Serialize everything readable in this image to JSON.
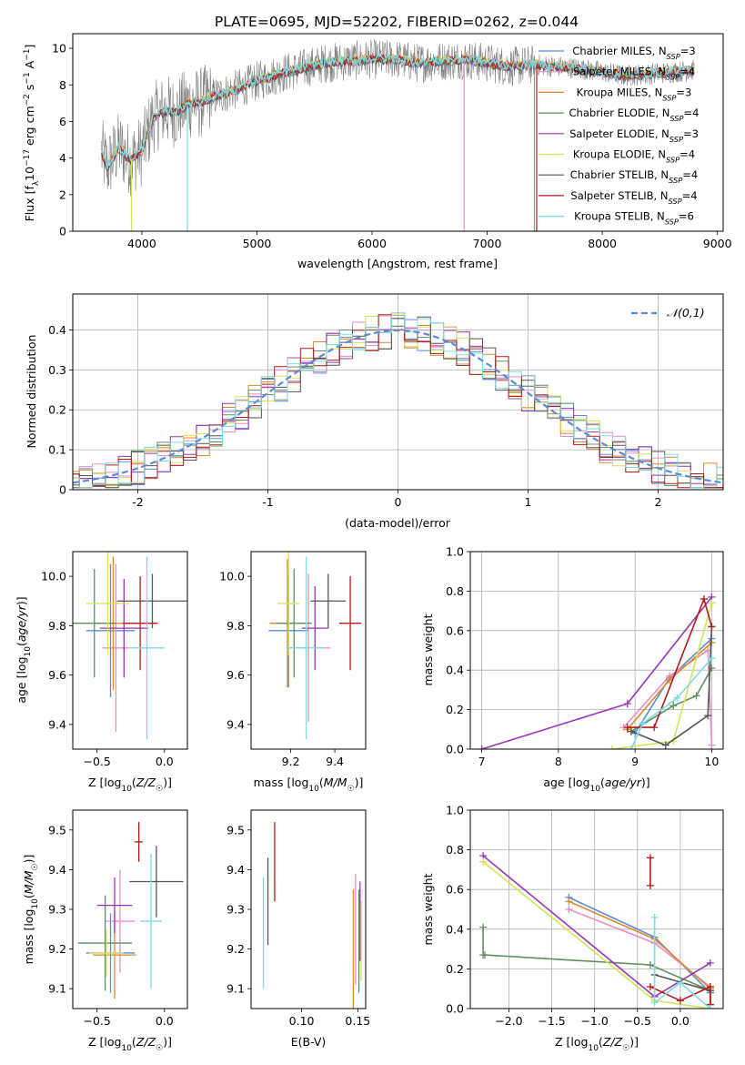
{
  "figure": {
    "title": "PLATE=0695, MJD=52202, FIBERID=0262, z=0.044"
  },
  "series_colors": {
    "Chabrier MILES": "#5b8bd6",
    "Salpeter MILES": "#e78fc5",
    "Kroupa MILES": "#d98a2b",
    "Chabrier ELODIE": "#5f8f5f",
    "Salpeter ELODIE": "#9b35b5",
    "Kroupa ELODIE": "#d4e35a",
    "Chabrier STELIB": "#555555",
    "Salpeter STELIB": "#b41a1a",
    "Kroupa STELIB": "#7edbe0",
    "data": "#808080",
    "gaussian": "#5b8bd6"
  },
  "chart_data": [
    {
      "id": "spectrum",
      "type": "line",
      "xlabel": "wavelength [Angstrom, rest frame]",
      "ylabel": "Flux [f_λ10^{-17} erg cm^{-2} s^{-1} A^{-1}]",
      "xlim": [
        3400,
        9050
      ],
      "ylim": [
        0,
        10.8
      ],
      "xticks": [
        4000,
        5000,
        6000,
        7000,
        8000,
        9000
      ],
      "yticks": [
        0,
        2,
        4,
        6,
        8,
        10
      ],
      "legend_position": "top-right",
      "legend": [
        {
          "name": "Chabrier MILES",
          "label": "Chabrier MILES, N",
          "sub": "SSP",
          "tail": "=3"
        },
        {
          "name": "Salpeter MILES",
          "label": "Salpeter MILES, N",
          "sub": "SSP",
          "tail": "=4"
        },
        {
          "name": "Kroupa MILES",
          "label": "Kroupa MILES, N",
          "sub": "SSP",
          "tail": "=3"
        },
        {
          "name": "Chabrier ELODIE",
          "label": "Chabrier ELODIE, N",
          "sub": "SSP",
          "tail": "=4"
        },
        {
          "name": "Salpeter ELODIE",
          "label": "Salpeter ELODIE, N",
          "sub": "SSP",
          "tail": "=3"
        },
        {
          "name": "Kroupa ELODIE",
          "label": "Kroupa ELODIE, N",
          "sub": "SSP",
          "tail": "=4"
        },
        {
          "name": "Chabrier STELIB",
          "label": "Chabrier STELIB, N",
          "sub": "SSP",
          "tail": "=4"
        },
        {
          "name": "Salpeter STELIB",
          "label": "Salpeter STELIB, N",
          "sub": "SSP",
          "tail": "=4"
        },
        {
          "name": "Kroupa STELIB",
          "label": "Kroupa STELIB, N",
          "sub": "SSP",
          "tail": "=6"
        }
      ],
      "continuum": {
        "x": [
          3650,
          3700,
          3800,
          3900,
          4000,
          4100,
          4200,
          4300,
          4400,
          4500,
          4600,
          4800,
          5000,
          5200,
          5400,
          5600,
          5800,
          6000,
          6200,
          6400,
          6600,
          6800,
          7000,
          7200,
          7400,
          7600,
          7800,
          8000,
          8200,
          8400,
          8600,
          8800
        ],
        "y": [
          4.3,
          3.5,
          4.6,
          3.9,
          4.4,
          6.2,
          6.6,
          6.5,
          7.0,
          7.0,
          7.3,
          7.7,
          8.2,
          8.6,
          8.9,
          9.2,
          9.3,
          9.4,
          9.4,
          9.2,
          9.3,
          9.4,
          9.2,
          9.0,
          9.1,
          9.0,
          8.9,
          8.7,
          8.5,
          8.6,
          8.7,
          8.8
        ]
      },
      "dips": [
        {
          "model": "Kroupa ELODIE",
          "x": 3910,
          "to": 0
        },
        {
          "model": "Kroupa STELIB",
          "x": 4395,
          "to": 0
        },
        {
          "model": "Salpeter MILES",
          "x": 6800,
          "to": 0
        },
        {
          "model": "Kroupa MILES",
          "x": 7410,
          "to": 0
        },
        {
          "model": "Salpeter STELIB",
          "x": 7430,
          "to": 0
        }
      ]
    },
    {
      "id": "residuals",
      "type": "histogram",
      "xlabel": "(data-model)/error",
      "ylabel": "Normed distribution",
      "xlim": [
        -2.5,
        2.5
      ],
      "ylim": [
        0,
        0.49
      ],
      "xticks": [
        -2,
        -1,
        0,
        1,
        2
      ],
      "yticks": [
        0.0,
        0.1,
        0.2,
        0.3,
        0.4
      ],
      "grid": true,
      "legend_position": "top-right",
      "legend_label": "𝒩(0,1)",
      "bin_width": 0.1,
      "reference": {
        "name": "𝒩(0,1)",
        "mean": 0,
        "sigma": 1,
        "style": "dashed"
      }
    },
    {
      "id": "age-vs-Z",
      "type": "scatter",
      "xlabel": "Z [log10(Z/Z☉)]",
      "ylabel": "age [log10(age/yr)]",
      "xlim": [
        -0.68,
        0.17
      ],
      "ylim": [
        9.3,
        10.1
      ],
      "xticks": [
        -0.5,
        0.0
      ],
      "xticklabels": [
        "−0.5",
        "0.0"
      ],
      "yticks": [
        9.4,
        9.6,
        9.8,
        10.0
      ],
      "points": [
        {
          "model": "Chabrier MILES",
          "x": -0.4,
          "y": 9.78,
          "xerr": 0.18,
          "yerr": 0.27
        },
        {
          "model": "Salpeter MILES",
          "x": -0.36,
          "y": 9.71,
          "xerr": 0.1,
          "yerr": 0.34
        },
        {
          "model": "Kroupa MILES",
          "x": -0.38,
          "y": 9.81,
          "xerr": 0.15,
          "yerr": 0.27
        },
        {
          "model": "Chabrier ELODIE",
          "x": -0.52,
          "y": 9.81,
          "xerr": 0.16,
          "yerr": 0.22
        },
        {
          "model": "Salpeter ELODIE",
          "x": -0.3,
          "y": 9.79,
          "xerr": 0.18,
          "yerr": 0.2
        },
        {
          "model": "Kroupa ELODIE",
          "x": -0.42,
          "y": 9.89,
          "xerr": 0.16,
          "yerr": 0.21
        },
        {
          "model": "Chabrier STELIB",
          "x": -0.09,
          "y": 9.9,
          "xerr": 0.26,
          "yerr": 0.11
        },
        {
          "model": "Salpeter STELIB",
          "x": -0.18,
          "y": 9.81,
          "xerr": 0.13,
          "yerr": 0.19
        },
        {
          "model": "Kroupa STELIB",
          "x": -0.13,
          "y": 9.71,
          "xerr": 0.13,
          "yerr": 0.37
        }
      ]
    },
    {
      "id": "age-vs-mass",
      "type": "scatter",
      "xlabel": "mass [log10(M/M☉)]",
      "ylabel": "",
      "xlim": [
        9.02,
        9.54
      ],
      "ylim": [
        9.3,
        10.1
      ],
      "xticks": [
        9.2,
        9.4
      ],
      "yticks": [
        9.4,
        9.6,
        9.8,
        10.0
      ],
      "points": [
        {
          "model": "Chabrier MILES",
          "x": 9.19,
          "y": 9.78,
          "xerr": 0.09,
          "yerr": 0.23
        },
        {
          "model": "Salpeter MILES",
          "x": 9.28,
          "y": 9.71,
          "xerr": 0.1,
          "yerr": 0.3
        },
        {
          "model": "Kroupa MILES",
          "x": 9.185,
          "y": 9.81,
          "xerr": 0.08,
          "yerr": 0.26
        },
        {
          "model": "Chabrier ELODIE",
          "x": 9.215,
          "y": 9.81,
          "xerr": 0.08,
          "yerr": 0.22
        },
        {
          "model": "Salpeter ELODIE",
          "x": 9.31,
          "y": 9.79,
          "xerr": 0.06,
          "yerr": 0.17
        },
        {
          "model": "Kroupa ELODIE",
          "x": 9.19,
          "y": 9.89,
          "xerr": 0.05,
          "yerr": 0.21
        },
        {
          "model": "Chabrier STELIB",
          "x": 9.37,
          "y": 9.9,
          "xerr": 0.08,
          "yerr": 0.11
        },
        {
          "model": "Salpeter STELIB",
          "x": 9.47,
          "y": 9.81,
          "xerr": 0.05,
          "yerr": 0.19
        },
        {
          "model": "Kroupa STELIB",
          "x": 9.27,
          "y": 9.71,
          "xerr": 0.09,
          "yerr": 0.37
        }
      ]
    },
    {
      "id": "massweight-vs-age",
      "type": "line",
      "xlabel": "age [log10(age/yr)]",
      "ylabel": "mass weight",
      "xlim": [
        6.85,
        10.15
      ],
      "ylim": [
        0,
        1.0
      ],
      "xticks": [
        7,
        8,
        9,
        10
      ],
      "yticks": [
        0.0,
        0.2,
        0.4,
        0.6,
        0.8,
        1.0
      ],
      "grid": true,
      "series": [
        {
          "name": "Chabrier MILES",
          "x": [
            9.0,
            9.45,
            10.0
          ],
          "y": [
            0.08,
            0.36,
            0.56
          ]
        },
        {
          "name": "Salpeter MILES",
          "x": [
            8.85,
            9.45,
            9.95,
            10.0
          ],
          "y": [
            0.11,
            0.37,
            0.5,
            0.02
          ]
        },
        {
          "name": "Kroupa MILES",
          "x": [
            8.9,
            9.45,
            10.0
          ],
          "y": [
            0.1,
            0.35,
            0.54
          ]
        },
        {
          "name": "Chabrier ELODIE",
          "x": [
            8.95,
            9.5,
            9.8,
            10.0
          ],
          "y": [
            0.09,
            0.22,
            0.27,
            0.41
          ]
        },
        {
          "name": "Salpeter ELODIE",
          "x": [
            7.0,
            8.9,
            10.0
          ],
          "y": [
            0.0,
            0.23,
            0.77
          ]
        },
        {
          "name": "Kroupa ELODIE",
          "x": [
            8.7,
            9.5,
            10.0
          ],
          "y": [
            0.0,
            0.04,
            0.74
          ]
        },
        {
          "name": "Chabrier STELIB",
          "x": [
            8.95,
            9.4,
            9.95,
            10.0
          ],
          "y": [
            0.09,
            0.02,
            0.17,
            0.62
          ]
        },
        {
          "name": "Salpeter STELIB",
          "x": [
            8.9,
            9.25,
            9.9,
            10.0
          ],
          "y": [
            0.11,
            0.11,
            0.76,
            0.62
          ]
        },
        {
          "name": "Kroupa STELIB",
          "x": [
            8.95,
            9.1,
            9.55,
            10.0
          ],
          "y": [
            0.0,
            0.13,
            0.26,
            0.46
          ]
        }
      ]
    },
    {
      "id": "mass-vs-Z",
      "type": "scatter",
      "xlabel": "Z [log10(Z/Z☉)]",
      "ylabel": "mass [log10(M/M☉)]",
      "xlim": [
        -0.68,
        0.17
      ],
      "ylim": [
        9.05,
        9.55
      ],
      "xticks": [
        -0.5,
        0.0
      ],
      "xticklabels": [
        "−0.5",
        "0.0"
      ],
      "yticks": [
        9.1,
        9.2,
        9.3,
        9.4,
        9.5
      ],
      "points": [
        {
          "model": "Chabrier MILES",
          "x": -0.4,
          "y": 9.19,
          "xerr": 0.18,
          "yerr": 0.1
        },
        {
          "model": "Salpeter MILES",
          "x": -0.33,
          "y": 9.27,
          "xerr": 0.11,
          "yerr": 0.13
        },
        {
          "model": "Kroupa MILES",
          "x": -0.37,
          "y": 9.185,
          "xerr": 0.16,
          "yerr": 0.11
        },
        {
          "model": "Chabrier ELODIE",
          "x": -0.44,
          "y": 9.215,
          "xerr": 0.2,
          "yerr": 0.12
        },
        {
          "model": "Salpeter ELODIE",
          "x": -0.37,
          "y": 9.31,
          "xerr": 0.13,
          "yerr": 0.07
        },
        {
          "model": "Kroupa ELODIE",
          "x": -0.43,
          "y": 9.19,
          "xerr": 0.13,
          "yerr": 0.06
        },
        {
          "model": "Chabrier STELIB",
          "x": -0.06,
          "y": 9.37,
          "xerr": 0.2,
          "yerr": 0.09
        },
        {
          "model": "Salpeter STELIB",
          "x": -0.19,
          "y": 9.47,
          "xerr": 0.03,
          "yerr": 0.05
        },
        {
          "model": "Kroupa STELIB",
          "x": -0.1,
          "y": 9.27,
          "xerr": 0.08,
          "yerr": 0.17
        }
      ]
    },
    {
      "id": "mass-vs-EBV",
      "type": "scatter",
      "xlabel": "E(B-V)",
      "ylabel": "",
      "xlim": [
        0.055,
        0.157
      ],
      "ylim": [
        9.05,
        9.55
      ],
      "xticks": [
        0.1,
        0.15
      ],
      "yticks": [
        9.1,
        9.2,
        9.3,
        9.4,
        9.5
      ],
      "points": [
        {
          "model": "Kroupa STELIB",
          "x": 0.066,
          "y": 9.24,
          "yerr": 0.14
        },
        {
          "model": "Chabrier STELIB",
          "x": 0.07,
          "y": 9.32,
          "yerr": 0.11
        },
        {
          "model": "Salpeter STELIB",
          "x": 0.076,
          "y": 9.42,
          "yerr": 0.1
        },
        {
          "model": "Kroupa MILES",
          "x": 0.146,
          "y": 9.2,
          "yerr": 0.15
        },
        {
          "model": "Salpeter MILES",
          "x": 0.148,
          "y": 9.25,
          "yerr": 0.14
        },
        {
          "model": "Chabrier ELODIE",
          "x": 0.151,
          "y": 9.22,
          "yerr": 0.13
        },
        {
          "model": "Salpeter ELODIE",
          "x": 0.152,
          "y": 9.27,
          "yerr": 0.1
        },
        {
          "model": "Kroupa ELODIE",
          "x": 0.153,
          "y": 9.22,
          "yerr": 0.1
        }
      ]
    },
    {
      "id": "massweight-vs-Z",
      "type": "line",
      "xlabel": "Z [log10(Z/Z☉)]",
      "ylabel": "mass weight",
      "xlim": [
        -2.45,
        0.5
      ],
      "ylim": [
        0,
        1.0
      ],
      "xticks": [
        -2.0,
        -1.5,
        -1.0,
        -0.5,
        0.0
      ],
      "xticklabels": [
        "−2.0",
        "−1.5",
        "−1.0",
        "−0.5",
        "0.0"
      ],
      "yticks": [
        0.0,
        0.2,
        0.4,
        0.6,
        0.8,
        1.0
      ],
      "grid": true,
      "series": [
        {
          "name": "Chabrier MILES",
          "x": [
            -1.3,
            -0.3,
            0.35
          ],
          "y": [
            0.56,
            0.36,
            0.08
          ]
        },
        {
          "name": "Salpeter MILES",
          "x": [
            -1.3,
            -0.3,
            0.35,
            0.35
          ],
          "y": [
            0.5,
            0.33,
            0.11,
            0.02
          ]
        },
        {
          "name": "Kroupa MILES",
          "x": [
            -1.3,
            -0.3,
            0.35
          ],
          "y": [
            0.54,
            0.35,
            0.1
          ]
        },
        {
          "name": "Chabrier ELODIE",
          "x": [
            -2.3,
            -2.3,
            -2.28,
            -0.35,
            0.35
          ],
          "y": [
            0.41,
            0.27,
            0.27,
            0.22,
            0.09
          ]
        },
        {
          "name": "Salpeter ELODIE",
          "x": [
            -2.3,
            -0.3,
            0.35
          ],
          "y": [
            0.77,
            0.06,
            0.23
          ]
        },
        {
          "name": "Kroupa ELODIE",
          "x": [
            -2.3,
            -0.3,
            0.35
          ],
          "y": [
            0.74,
            0.04,
            0.0
          ]
        },
        {
          "name": "Chabrier STELIB",
          "x": [
            -0.3,
            0.35,
            0.35
          ],
          "y": [
            0.17,
            0.09,
            0.02
          ]
        },
        {
          "name": "Salpeter STELIB",
          "x": [
            -0.35,
            0.0,
            0.35,
            0.35
          ],
          "y": [
            0.11,
            0.04,
            0.11,
            0.02
          ]
        },
        {
          "name": "Kroupa STELIB",
          "x": [
            -0.3,
            -0.3,
            0.0,
            0.35
          ],
          "y": [
            0.46,
            0.03,
            0.13,
            0.0
          ]
        },
        {
          "name": "Salpeter STELIB",
          "x": [
            -0.35,
            -0.35
          ],
          "y": [
            0.76,
            0.62
          ]
        }
      ]
    }
  ]
}
